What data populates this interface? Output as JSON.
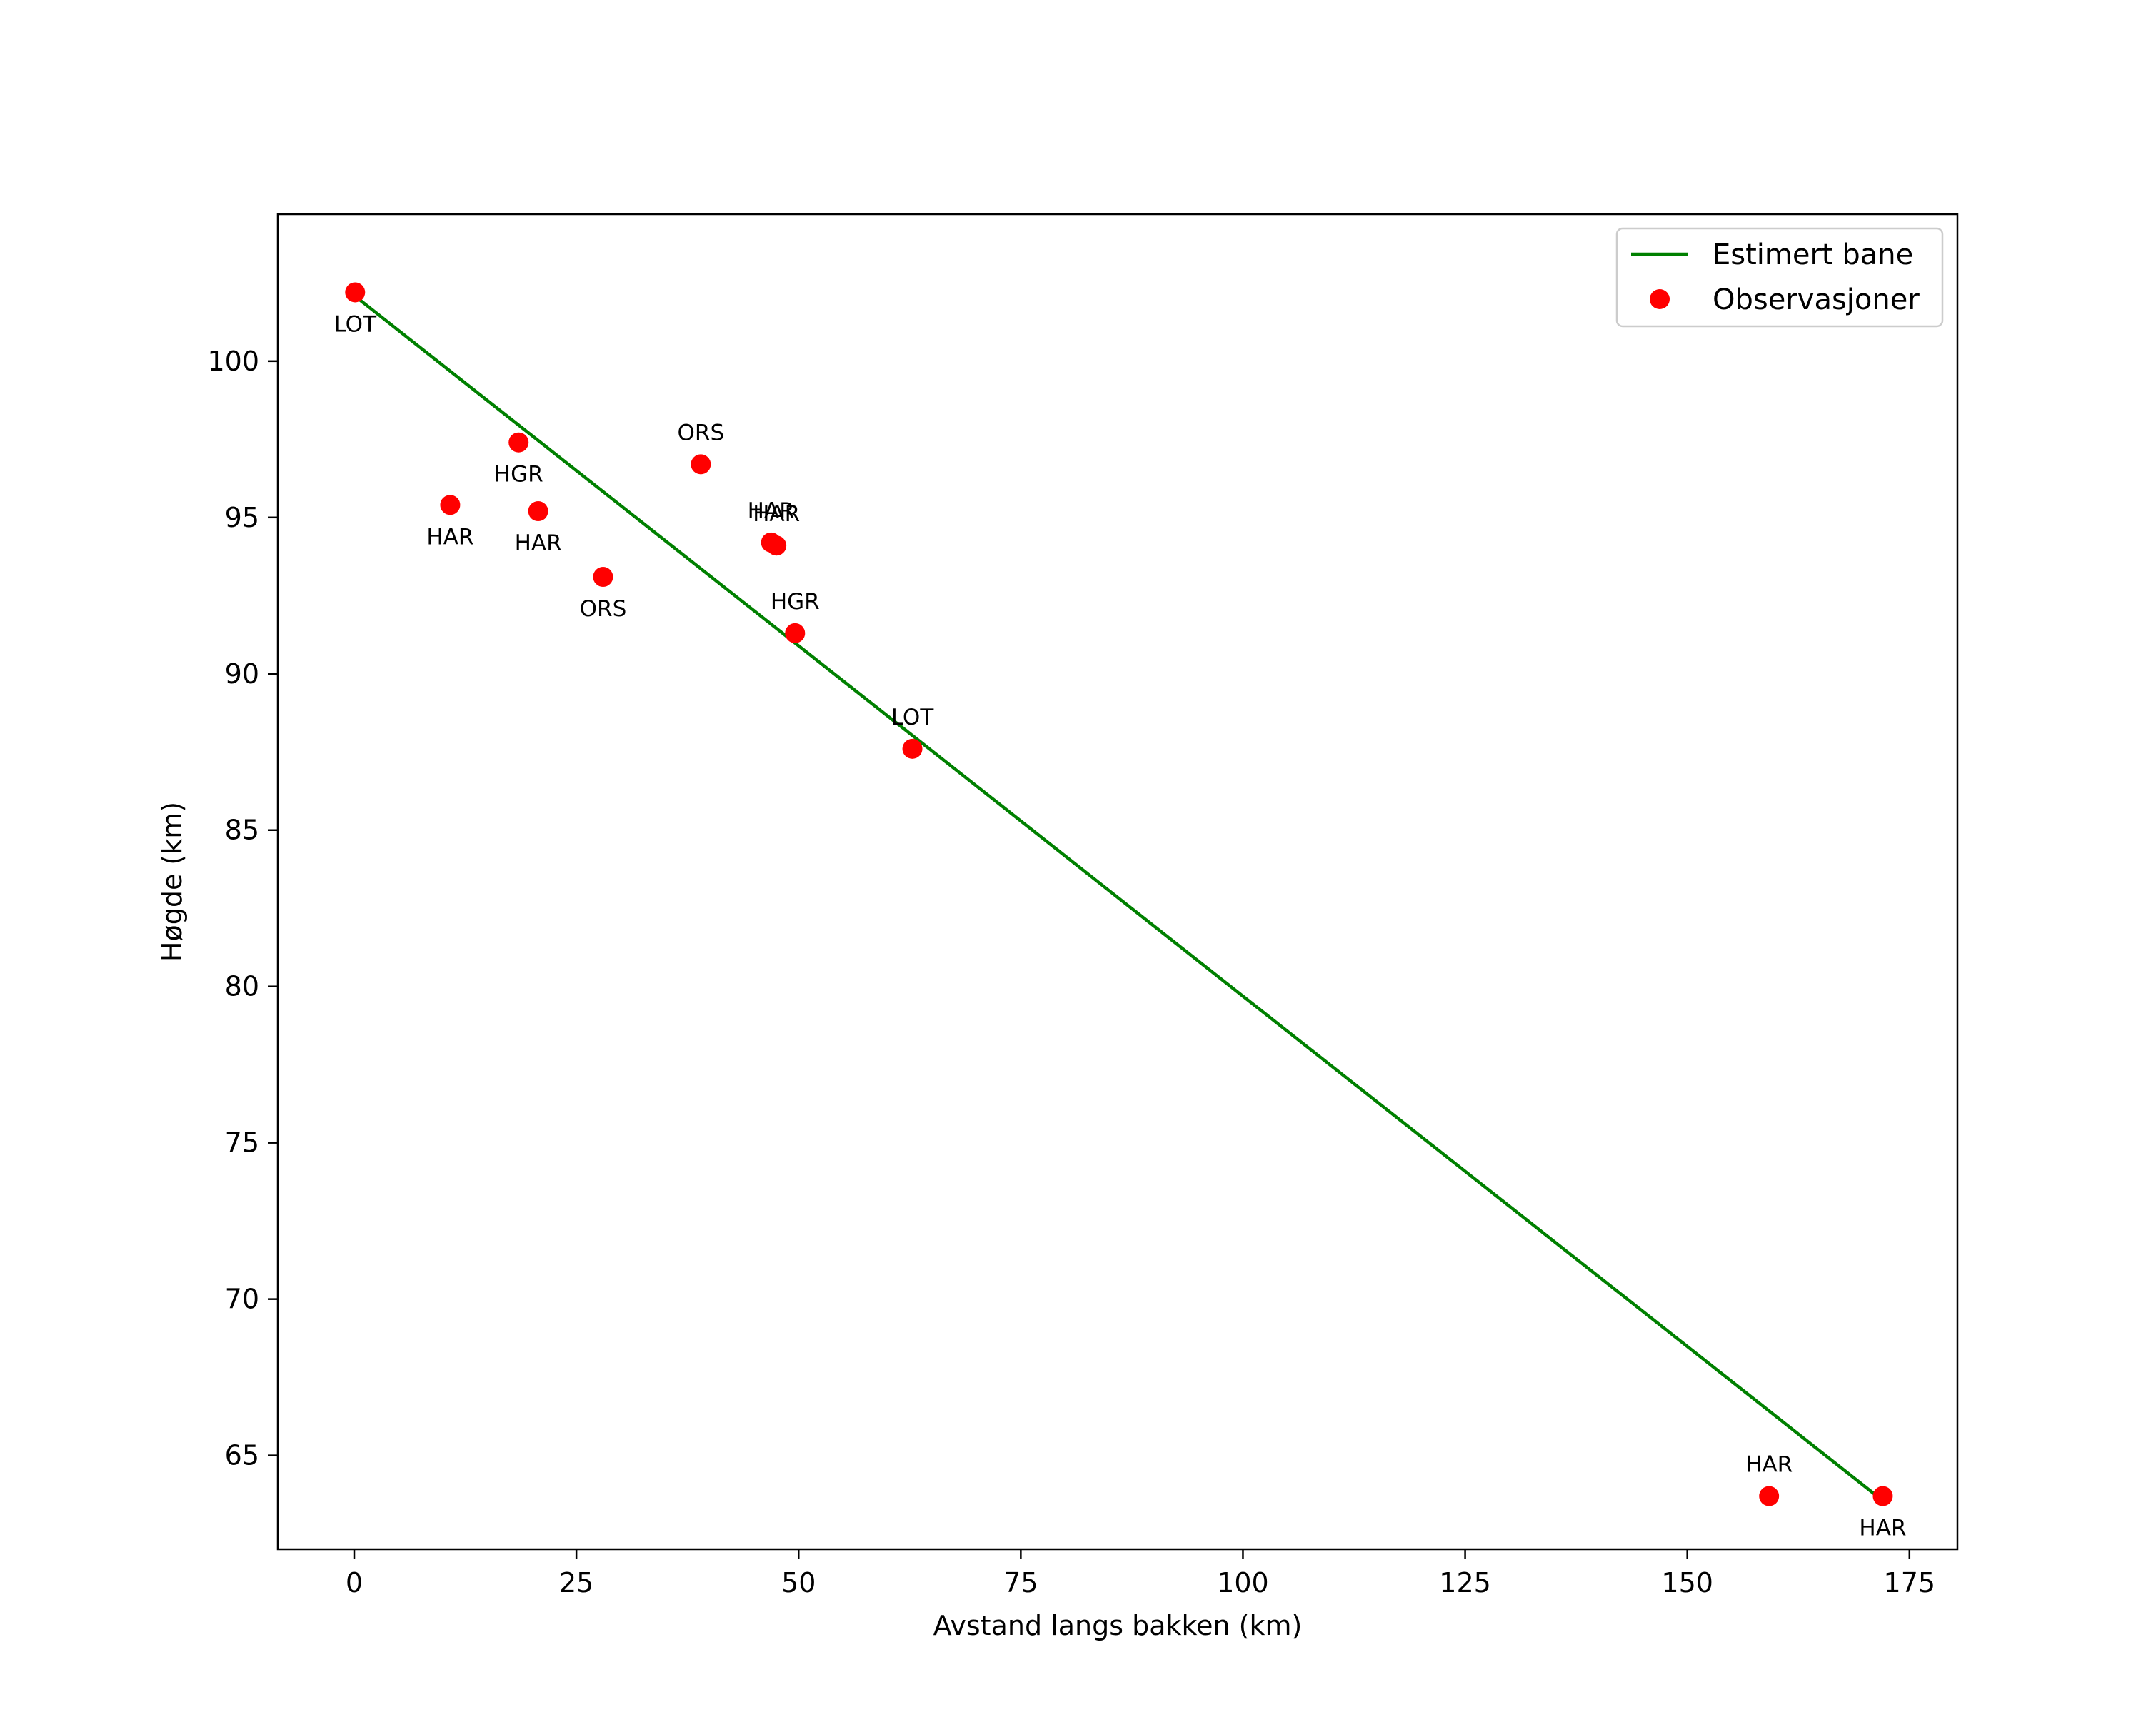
{
  "chart_data": {
    "type": "scatter",
    "title": "",
    "xlabel": "Avstand langs bakken (km)",
    "ylabel": "Høgde (km)",
    "xlim": [
      -8.6,
      180.4
    ],
    "ylim": [
      62.0,
      104.7
    ],
    "xticks": [
      0,
      25,
      50,
      75,
      100,
      125,
      150,
      175
    ],
    "yticks": [
      65,
      70,
      75,
      80,
      85,
      90,
      95,
      100
    ],
    "grid": false,
    "legend_position": "top-right",
    "series": [
      {
        "name": "Estimert bane",
        "kind": "line",
        "color": "#008000",
        "x": [
          0,
          171.8
        ],
        "y": [
          102.1,
          63.6
        ]
      },
      {
        "name": "Observasjoner",
        "kind": "scatter",
        "color": "#ff0000",
        "points": [
          {
            "x": 0.1,
            "y": 102.2,
            "label": "LOT",
            "label_pos": "below"
          },
          {
            "x": 10.8,
            "y": 95.4,
            "label": "HAR",
            "label_pos": "below"
          },
          {
            "x": 18.5,
            "y": 97.4,
            "label": "HGR",
            "label_pos": "below"
          },
          {
            "x": 20.7,
            "y": 95.2,
            "label": "HAR",
            "label_pos": "below"
          },
          {
            "x": 28.0,
            "y": 93.1,
            "label": "ORS",
            "label_pos": "below"
          },
          {
            "x": 39.0,
            "y": 96.7,
            "label": "ORS",
            "label_pos": "above"
          },
          {
            "x": 46.9,
            "y": 94.2,
            "label": "HAR",
            "label_pos": "above"
          },
          {
            "x": 47.5,
            "y": 94.1,
            "label": "HAR",
            "label_pos": "above"
          },
          {
            "x": 49.6,
            "y": 91.3,
            "label": "HGR",
            "label_pos": "above"
          },
          {
            "x": 62.8,
            "y": 87.6,
            "label": "LOT",
            "label_pos": "above"
          },
          {
            "x": 159.2,
            "y": 63.7,
            "label": "HAR",
            "label_pos": "above"
          },
          {
            "x": 172.0,
            "y": 63.7,
            "label": "HAR",
            "label_pos": "below"
          }
        ]
      }
    ]
  }
}
